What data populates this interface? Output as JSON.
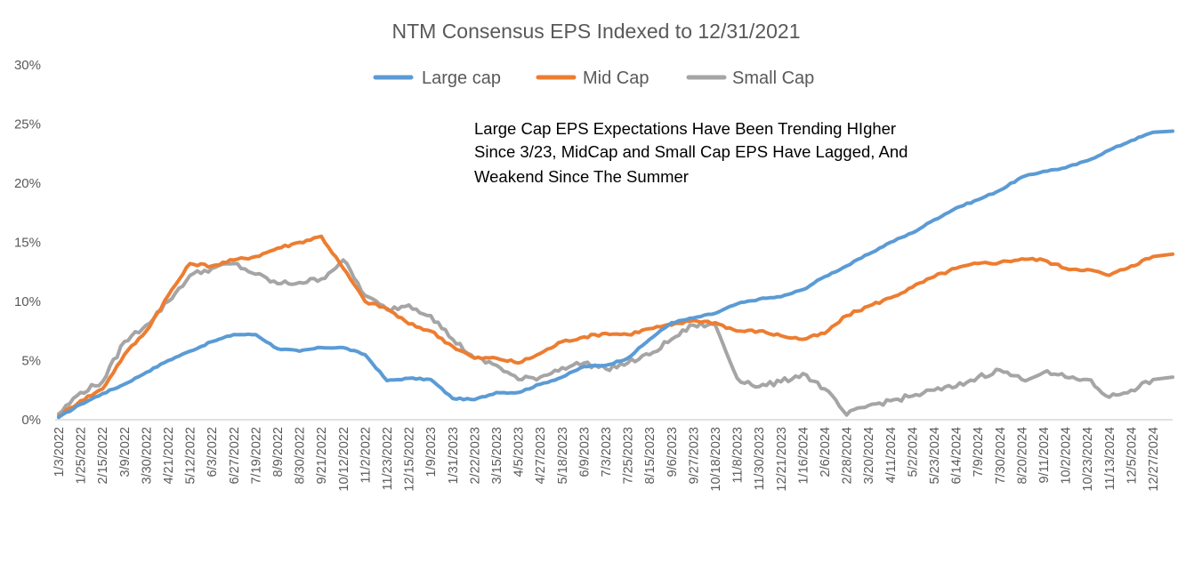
{
  "chart_data": {
    "type": "line",
    "title": "NTM Consensus  EPS Indexed to 12/31/2021",
    "xlabel": "",
    "ylabel": "",
    "ylim": [
      0,
      30
    ],
    "yticks": [
      "0%",
      "5%",
      "10%",
      "15%",
      "20%",
      "25%",
      "30%"
    ],
    "ytick_values": [
      0,
      5,
      10,
      15,
      20,
      25,
      30
    ],
    "grid": false,
    "legend_position": "top-center",
    "categories": [
      "1/3/2022",
      "1/25/2022",
      "2/15/2022",
      "3/9/2022",
      "3/30/2022",
      "4/21/2022",
      "5/12/2022",
      "6/3/2022",
      "6/27/2022",
      "7/19/2022",
      "8/9/2022",
      "8/30/2022",
      "9/21/2022",
      "10/12/2022",
      "11/2/2022",
      "11/23/2022",
      "12/15/2022",
      "1/9/2023",
      "1/31/2023",
      "2/22/2023",
      "3/15/2023",
      "4/5/2023",
      "4/27/2023",
      "5/18/2023",
      "6/9/2023",
      "7/3/2023",
      "7/25/2023",
      "8/15/2023",
      "9/6/2023",
      "9/27/2023",
      "10/18/2023",
      "11/8/2023",
      "11/30/2023",
      "12/21/2023",
      "1/16/2024",
      "2/6/2024",
      "2/28/2024",
      "3/20/2024",
      "4/11/2024",
      "5/2/2024",
      "5/23/2024",
      "6/14/2024",
      "7/9/2024",
      "7/30/2024",
      "8/20/2024",
      "9/11/2024",
      "10/2/2024",
      "10/23/2024",
      "11/13/2024",
      "12/5/2024",
      "12/27/2024"
    ],
    "series": [
      {
        "name": "Large cap",
        "color": "#5B9BD5",
        "values": [
          0.2,
          1.3,
          2.2,
          3.0,
          4.0,
          5.0,
          5.8,
          6.6,
          7.2,
          7.2,
          6.0,
          5.8,
          6.1,
          6.1,
          5.5,
          3.3,
          3.5,
          3.4,
          1.8,
          1.7,
          2.3,
          2.3,
          3.0,
          3.6,
          4.5,
          4.6,
          5.2,
          6.8,
          8.2,
          8.6,
          9.0,
          9.8,
          10.2,
          10.4,
          11.0,
          12.1,
          13.0,
          14.0,
          15.0,
          15.8,
          16.9,
          17.9,
          18.6,
          19.4,
          20.5,
          21.0,
          21.3,
          21.9,
          22.8,
          23.6,
          24.3
        ]
      },
      {
        "name": "Mid Cap",
        "color": "#ED7D31",
        "values": [
          0.3,
          1.6,
          2.6,
          5.5,
          7.5,
          10.5,
          13.2,
          13.0,
          13.5,
          13.8,
          14.5,
          15.0,
          15.5,
          12.8,
          10.0,
          9.4,
          8.1,
          7.5,
          6.2,
          5.2,
          5.2,
          4.8,
          5.6,
          6.6,
          7.0,
          7.3,
          7.2,
          7.7,
          8.0,
          8.4,
          8.2,
          7.5,
          7.5,
          7.1,
          6.8,
          7.3,
          8.8,
          9.6,
          10.3,
          11.2,
          12.1,
          12.8,
          13.2,
          13.3,
          13.6,
          13.5,
          12.8,
          12.7,
          12.2,
          13.0,
          13.8
        ]
      },
      {
        "name": "Small Cap",
        "color": "#A5A5A5",
        "values": [
          0.5,
          2.3,
          3.2,
          6.6,
          8.0,
          10.0,
          12.2,
          12.8,
          13.2,
          12.3,
          11.5,
          11.6,
          11.9,
          13.5,
          10.5,
          9.3,
          9.7,
          8.8,
          6.8,
          5.2,
          4.6,
          3.4,
          3.6,
          4.4,
          4.8,
          4.3,
          4.8,
          5.5,
          6.8,
          8.0,
          8.0,
          3.5,
          2.8,
          3.2,
          3.9,
          2.6,
          0.4,
          1.2,
          1.6,
          2.0,
          2.5,
          2.8,
          3.6,
          4.2,
          3.4,
          4.0,
          3.6,
          3.4,
          1.9,
          2.5,
          3.4
        ]
      }
    ],
    "annotations": [
      {
        "lines": [
          "Large Cap EPS Expectations Have Been Trending HIgher",
          "Since 3/23, MidCap and Small Cap EPS Have Lagged, And",
          "Weakend  Since The Summer"
        ],
        "position": "upper-center"
      }
    ]
  }
}
